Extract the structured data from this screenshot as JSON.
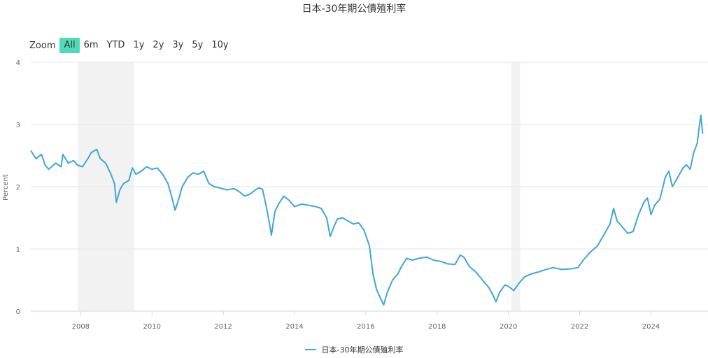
{
  "chart_data": {
    "type": "line",
    "title": "日本-30年期公債殖利率",
    "xlabel": "",
    "ylabel": "Percent",
    "ylim": [
      0,
      4
    ],
    "yticks": [
      "0",
      "1",
      "2",
      "3",
      "4"
    ],
    "xticks": [
      "2008",
      "2010",
      "2012",
      "2014",
      "2016",
      "2018",
      "2020",
      "2022",
      "2024"
    ],
    "xlim": [
      2006.6,
      2025.6
    ],
    "grid": true,
    "legend_position": "bottom",
    "recession_bands": [
      [
        2007.92,
        2009.5
      ],
      [
        2020.08,
        2020.33
      ]
    ],
    "series": [
      {
        "name": "日本-30年期公債殖利率",
        "color": "#3ea7d6",
        "points": [
          [
            2006.6,
            2.58
          ],
          [
            2006.75,
            2.45
          ],
          [
            2006.9,
            2.52
          ],
          [
            2007.0,
            2.35
          ],
          [
            2007.1,
            2.28
          ],
          [
            2007.3,
            2.38
          ],
          [
            2007.45,
            2.32
          ],
          [
            2007.5,
            2.52
          ],
          [
            2007.65,
            2.38
          ],
          [
            2007.8,
            2.42
          ],
          [
            2007.9,
            2.35
          ],
          [
            2008.05,
            2.32
          ],
          [
            2008.2,
            2.45
          ],
          [
            2008.3,
            2.55
          ],
          [
            2008.45,
            2.6
          ],
          [
            2008.55,
            2.45
          ],
          [
            2008.7,
            2.38
          ],
          [
            2008.85,
            2.2
          ],
          [
            2008.95,
            2.05
          ],
          [
            2009.0,
            1.75
          ],
          [
            2009.1,
            1.95
          ],
          [
            2009.2,
            2.05
          ],
          [
            2009.35,
            2.1
          ],
          [
            2009.45,
            2.3
          ],
          [
            2009.55,
            2.2
          ],
          [
            2009.7,
            2.25
          ],
          [
            2009.85,
            2.32
          ],
          [
            2010.0,
            2.28
          ],
          [
            2010.15,
            2.3
          ],
          [
            2010.3,
            2.2
          ],
          [
            2010.45,
            2.05
          ],
          [
            2010.55,
            1.85
          ],
          [
            2010.65,
            1.62
          ],
          [
            2010.75,
            1.8
          ],
          [
            2010.85,
            2.0
          ],
          [
            2011.0,
            2.15
          ],
          [
            2011.15,
            2.22
          ],
          [
            2011.3,
            2.2
          ],
          [
            2011.45,
            2.25
          ],
          [
            2011.6,
            2.05
          ],
          [
            2011.75,
            2.0
          ],
          [
            2011.9,
            1.98
          ],
          [
            2012.1,
            1.95
          ],
          [
            2012.3,
            1.97
          ],
          [
            2012.45,
            1.92
          ],
          [
            2012.6,
            1.85
          ],
          [
            2012.75,
            1.88
          ],
          [
            2012.9,
            1.95
          ],
          [
            2013.0,
            1.98
          ],
          [
            2013.1,
            1.96
          ],
          [
            2013.2,
            1.7
          ],
          [
            2013.3,
            1.4
          ],
          [
            2013.35,
            1.22
          ],
          [
            2013.45,
            1.6
          ],
          [
            2013.55,
            1.72
          ],
          [
            2013.7,
            1.85
          ],
          [
            2013.85,
            1.78
          ],
          [
            2014.0,
            1.68
          ],
          [
            2014.2,
            1.72
          ],
          [
            2014.4,
            1.7
          ],
          [
            2014.6,
            1.68
          ],
          [
            2014.75,
            1.65
          ],
          [
            2014.9,
            1.5
          ],
          [
            2015.0,
            1.2
          ],
          [
            2015.1,
            1.35
          ],
          [
            2015.2,
            1.48
          ],
          [
            2015.35,
            1.5
          ],
          [
            2015.5,
            1.45
          ],
          [
            2015.65,
            1.4
          ],
          [
            2015.8,
            1.42
          ],
          [
            2015.95,
            1.3
          ],
          [
            2016.1,
            1.05
          ],
          [
            2016.2,
            0.6
          ],
          [
            2016.3,
            0.35
          ],
          [
            2016.4,
            0.22
          ],
          [
            2016.5,
            0.1
          ],
          [
            2016.6,
            0.3
          ],
          [
            2016.75,
            0.5
          ],
          [
            2016.9,
            0.6
          ],
          [
            2017.0,
            0.72
          ],
          [
            2017.15,
            0.85
          ],
          [
            2017.3,
            0.82
          ],
          [
            2017.5,
            0.85
          ],
          [
            2017.7,
            0.87
          ],
          [
            2017.9,
            0.82
          ],
          [
            2018.1,
            0.8
          ],
          [
            2018.3,
            0.76
          ],
          [
            2018.5,
            0.75
          ],
          [
            2018.65,
            0.9
          ],
          [
            2018.75,
            0.87
          ],
          [
            2018.9,
            0.72
          ],
          [
            2019.1,
            0.62
          ],
          [
            2019.3,
            0.48
          ],
          [
            2019.45,
            0.38
          ],
          [
            2019.55,
            0.28
          ],
          [
            2019.65,
            0.15
          ],
          [
            2019.75,
            0.3
          ],
          [
            2019.9,
            0.42
          ],
          [
            2020.0,
            0.4
          ],
          [
            2020.15,
            0.33
          ],
          [
            2020.3,
            0.45
          ],
          [
            2020.45,
            0.55
          ],
          [
            2020.65,
            0.6
          ],
          [
            2020.85,
            0.63
          ],
          [
            2021.0,
            0.66
          ],
          [
            2021.25,
            0.7
          ],
          [
            2021.5,
            0.67
          ],
          [
            2021.75,
            0.68
          ],
          [
            2021.95,
            0.7
          ],
          [
            2022.1,
            0.82
          ],
          [
            2022.3,
            0.95
          ],
          [
            2022.5,
            1.05
          ],
          [
            2022.7,
            1.25
          ],
          [
            2022.85,
            1.4
          ],
          [
            2022.95,
            1.65
          ],
          [
            2023.05,
            1.45
          ],
          [
            2023.2,
            1.35
          ],
          [
            2023.35,
            1.25
          ],
          [
            2023.5,
            1.28
          ],
          [
            2023.65,
            1.55
          ],
          [
            2023.8,
            1.75
          ],
          [
            2023.9,
            1.82
          ],
          [
            2024.0,
            1.55
          ],
          [
            2024.1,
            1.7
          ],
          [
            2024.25,
            1.8
          ],
          [
            2024.4,
            2.15
          ],
          [
            2024.5,
            2.25
          ],
          [
            2024.6,
            2.0
          ],
          [
            2024.75,
            2.15
          ],
          [
            2024.9,
            2.3
          ],
          [
            2025.0,
            2.35
          ],
          [
            2025.1,
            2.28
          ],
          [
            2025.2,
            2.55
          ],
          [
            2025.3,
            2.7
          ],
          [
            2025.35,
            2.95
          ],
          [
            2025.4,
            3.15
          ],
          [
            2025.45,
            2.85
          ]
        ]
      }
    ]
  }
}
